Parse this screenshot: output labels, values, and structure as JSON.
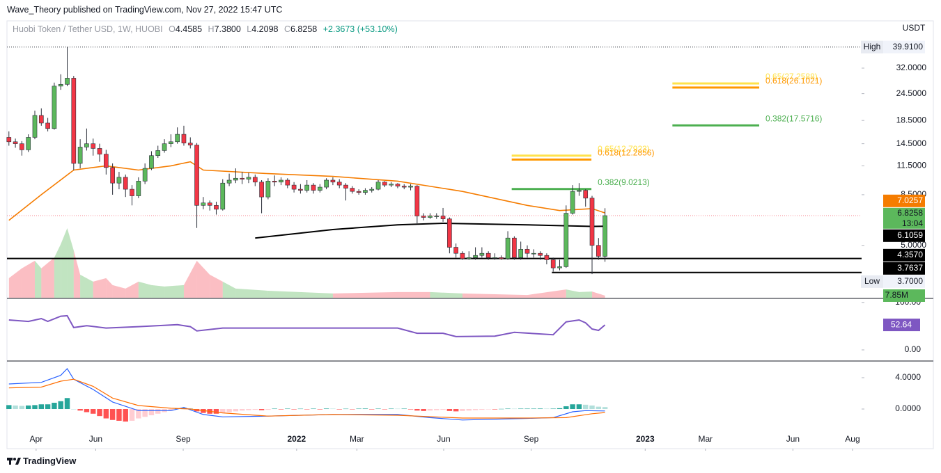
{
  "header": {
    "publisher": "Wave_Theory published on TradingView.com, Nov 27, 2022 15:47 UTC",
    "brand": "TradingView"
  },
  "chart_data": {
    "type": "candlestick",
    "title": "Huobi Token / Tether USD, 1W, HUOBI",
    "ohlc_letters": [
      "O",
      "H",
      "L",
      "C"
    ],
    "header_values": [
      "4.4585",
      "7.3800",
      "4.2098",
      "6.8258"
    ],
    "change": "+2.3673 (+53.10%)",
    "currency": "USDT",
    "up_color": "#5cb85c",
    "down_color": "#f23645",
    "outline_color": "#2a2e39",
    "last_line_color": "#f23645",
    "log_scale": true,
    "ylim": [
      2.89,
      52.5
    ],
    "yticks": [
      {
        "value": 32,
        "label": "32.0000"
      },
      {
        "value": 24.5,
        "label": "24.5000"
      },
      {
        "value": 18.5,
        "label": "18.5000"
      },
      {
        "value": 14.5,
        "label": "14.5000"
      },
      {
        "value": 11.5,
        "label": "11.5000"
      },
      {
        "value": 8.5,
        "label": "8.5000"
      },
      {
        "value": 5,
        "label": "5.0000"
      }
    ],
    "xlim": [
      -0.3,
      131.6
    ],
    "xticks": [
      {
        "value": 4.2,
        "label": "Apr"
      },
      {
        "value": 13.4,
        "label": "Jun"
      },
      {
        "value": 26.9,
        "label": "Sep"
      },
      {
        "value": 44.4,
        "label": "2022"
      },
      {
        "value": 53.7,
        "label": "Mar"
      },
      {
        "value": 67.1,
        "label": "Jun"
      },
      {
        "value": 80.6,
        "label": "Sep"
      },
      {
        "value": 98.2,
        "label": "2023"
      },
      {
        "value": 107.5,
        "label": "Mar"
      },
      {
        "value": 121,
        "label": "Jun"
      },
      {
        "value": 130.2,
        "label": "Aug"
      }
    ],
    "open": [
      15.5,
      14.8,
      14.5,
      13.6,
      15.5,
      19.5,
      18.0,
      17.0,
      26.5,
      27.0,
      28.8,
      11.8,
      14.0,
      14.5,
      13.8,
      13.0,
      11.3,
      9.6,
      10.2,
      9.0,
      8.4,
      9.8,
      11.2,
      12.8,
      13.5,
      14.5,
      14.8,
      16.0,
      14.6,
      14.3,
      7.6,
      7.8,
      7.6,
      7.3,
      9.6,
      9.9,
      10.1,
      10.0,
      10.2,
      9.7,
      8.3,
      9.8,
      9.7,
      9.9,
      9.4,
      9.0,
      8.9,
      9.4,
      8.9,
      9.2,
      9.9,
      9.7,
      9.4,
      9.1,
      8.8,
      8.7,
      8.9,
      9.0,
      9.7,
      9.4,
      9.5,
      9.3,
      9.2,
      9.3,
      6.8,
      6.7,
      6.8,
      6.8,
      6.6,
      4.9,
      4.6,
      4.35,
      4.4,
      4.5,
      4.6,
      4.4,
      4.4,
      4.35,
      5.4,
      4.4,
      4.8,
      4.6,
      4.6,
      4.5,
      4.3,
      3.95,
      4.0,
      7.0,
      8.8,
      8.9,
      8.2,
      5.0,
      4.4585
    ],
    "high": [
      16.5,
      15.3,
      14.9,
      16.0,
      20.5,
      21.0,
      19.0,
      27.5,
      30.0,
      39.91,
      29.5,
      15.2,
      17.0,
      15.3,
      14.5,
      13.6,
      11.8,
      10.8,
      10.5,
      9.4,
      10.2,
      11.8,
      13.4,
      14.2,
      15.2,
      16.0,
      17.2,
      17.5,
      15.5,
      14.6,
      8.3,
      8.0,
      7.9,
      10.0,
      10.6,
      11.2,
      10.8,
      10.7,
      10.5,
      9.9,
      10.1,
      10.4,
      10.2,
      10.1,
      9.7,
      9.5,
      9.9,
      9.6,
      9.5,
      10.1,
      10.2,
      10.0,
      9.6,
      9.3,
      9.0,
      9.1,
      9.2,
      9.9,
      9.8,
      9.7,
      9.6,
      9.5,
      9.5,
      9.4,
      7.0,
      7.0,
      7.0,
      7.4,
      6.7,
      5.1,
      4.7,
      4.7,
      4.9,
      4.9,
      4.7,
      4.6,
      4.5,
      5.8,
      5.5,
      5.2,
      5.0,
      4.8,
      4.7,
      4.6,
      4.4,
      4.3,
      7.6,
      9.4,
      9.6,
      9.0,
      8.4,
      5.4,
      7.38
    ],
    "low": [
      14.2,
      13.9,
      12.8,
      13.3,
      15.2,
      17.5,
      16.5,
      16.8,
      25.5,
      26.5,
      11.0,
      11.2,
      13.5,
      12.8,
      12.0,
      10.5,
      8.5,
      9.0,
      8.3,
      7.6,
      8.2,
      9.5,
      11.0,
      12.5,
      13.2,
      14.0,
      14.5,
      14.2,
      13.8,
      6.0,
      7.3,
      7.2,
      6.9,
      7.2,
      9.3,
      9.6,
      9.5,
      9.6,
      9.3,
      7.0,
      8.1,
      9.3,
      9.4,
      9.1,
      8.7,
      8.6,
      8.7,
      8.6,
      8.7,
      9.0,
      9.4,
      9.1,
      8.0,
      8.6,
      8.5,
      8.5,
      8.7,
      8.9,
      9.2,
      9.2,
      9.1,
      9.0,
      8.9,
      6.3,
      6.5,
      6.6,
      6.6,
      6.4,
      4.6,
      4.4,
      4.3,
      4.3,
      4.3,
      4.4,
      4.3,
      4.3,
      4.3,
      4.3,
      4.3,
      4.3,
      4.4,
      4.4,
      4.3,
      4.1,
      3.8,
      3.85,
      3.95,
      6.9,
      8.4,
      7.5,
      3.7,
      4.3,
      4.2098
    ],
    "close": [
      14.8,
      14.5,
      13.6,
      15.5,
      19.5,
      18.0,
      17.0,
      26.5,
      27.0,
      28.8,
      11.8,
      14.0,
      14.5,
      13.8,
      13.0,
      11.3,
      9.6,
      10.2,
      9.0,
      8.4,
      9.8,
      11.2,
      12.8,
      13.5,
      14.5,
      14.8,
      16.0,
      14.6,
      14.3,
      7.6,
      7.8,
      7.6,
      7.3,
      9.6,
      9.9,
      10.1,
      10.0,
      10.2,
      9.7,
      8.3,
      9.8,
      9.7,
      9.9,
      9.4,
      9.0,
      8.9,
      9.4,
      8.9,
      9.2,
      9.9,
      9.7,
      9.4,
      9.1,
      8.8,
      8.7,
      8.9,
      9.0,
      9.7,
      9.4,
      9.5,
      9.3,
      9.2,
      9.3,
      6.8,
      6.7,
      6.8,
      6.8,
      6.6,
      4.9,
      4.6,
      4.35,
      4.4,
      4.5,
      4.6,
      4.4,
      4.4,
      4.35,
      5.4,
      4.4,
      4.8,
      4.6,
      4.6,
      4.5,
      4.3,
      3.95,
      4.0,
      7.0,
      8.8,
      8.9,
      8.2,
      5.0,
      4.4585,
      6.8258
    ],
    "moving_averages": [
      {
        "color": "#f57c00",
        "x": [
          0,
          5,
          10,
          15,
          20,
          25,
          28,
          30,
          40,
          50,
          60,
          70,
          80,
          85,
          90,
          92
        ],
        "values": [
          6.5,
          8.5,
          11.0,
          11.5,
          11.0,
          11.5,
          12.0,
          11.0,
          10.6,
          10.3,
          9.8,
          8.8,
          7.6,
          7.2,
          7.35,
          7.0257
        ]
      },
      {
        "color": "#000000",
        "x": [
          38,
          50,
          60,
          67,
          80,
          90,
          92
        ],
        "values": [
          5.4,
          5.9,
          6.2,
          6.3,
          6.2,
          6.1,
          6.1059
        ]
      }
    ],
    "fib_levels": [
      {
        "label": "0.65(12.7923)",
        "value": 12.7923,
        "color": "#ffe24a",
        "x": [
          77.6,
          89.9
        ]
      },
      {
        "label": "0.618(12.2856)",
        "value": 12.2856,
        "color": "#ff9800",
        "x": [
          77.6,
          89.9
        ]
      },
      {
        "label": "0.382(9.0213)",
        "value": 9.0213,
        "color": "#4caf50",
        "x": [
          77.6,
          89.9
        ]
      },
      {
        "label": "0.65(27.2588)",
        "value": 27.2588,
        "color": "#ffe24a",
        "x": [
          102.4,
          115.8
        ]
      },
      {
        "label": "0.618(26.1021)",
        "value": 26.1021,
        "color": "#ff9800",
        "x": [
          102.4,
          115.8
        ]
      },
      {
        "label": "0.382(17.5716)",
        "value": 17.5716,
        "color": "#4caf50",
        "x": [
          102.4,
          115.8
        ]
      }
    ],
    "levels": [
      {
        "value": 4.357,
        "color": "#000000",
        "x": [
          -0.3,
          131.6
        ]
      },
      {
        "value": 3.7637,
        "color": "#000000",
        "x": [
          83.8,
          131.6
        ]
      }
    ],
    "extremes": {
      "high": {
        "name": "High",
        "value": 39.91,
        "label": "39.9100"
      },
      "low": {
        "name": "Low",
        "value": 3.7,
        "label": "3.7000"
      }
    },
    "price_tags": [
      {
        "value": 7.0257,
        "label": "7.0257",
        "color": "#f57c00",
        "text_color": "#ffffff"
      },
      {
        "value": 6.8258,
        "label": "6.8258",
        "countdown": "13:04",
        "color": "#5cb85c",
        "text_color": "#131722"
      },
      {
        "value": 6.1059,
        "label": "6.1059",
        "color": "#000000",
        "text_color": "#ffffff"
      },
      {
        "value": 4.357,
        "label": "4.3570",
        "color": "#000000",
        "text_color": "#ffffff"
      },
      {
        "value": 3.7637,
        "label": "3.7637",
        "color": "#000000",
        "text_color": "#ffffff"
      }
    ],
    "volume": {
      "ylim": [
        0,
        1035
      ],
      "up_color": "rgba(92,184,92,0.38)",
      "down_color": "rgba(242,54,69,0.32)",
      "tag_color": "#5cb85c",
      "x": [
        0,
        2,
        4,
        5,
        7,
        8,
        9,
        10,
        11,
        13,
        15,
        16,
        18,
        20,
        22,
        24,
        27,
        29,
        31,
        33,
        35,
        40,
        50,
        60,
        65,
        70,
        80,
        86,
        88,
        90,
        92
      ],
      "values": [
        73,
        110,
        138,
        110,
        150,
        200,
        260,
        177,
        86,
        60,
        73,
        47,
        34,
        60,
        47,
        42,
        47,
        138,
        86,
        60,
        34,
        26,
        16,
        21,
        21,
        16,
        10,
        31,
        21,
        23,
        7.85
      ],
      "last_value_label": "7.85M"
    },
    "rsi": {
      "color": "#7e57c2",
      "ylim": [
        -22,
        107
      ],
      "yticks": [
        {
          "value": 100,
          "label": "100.00"
        },
        {
          "value": 0,
          "label": "0.00"
        }
      ],
      "x": [
        0,
        3,
        5,
        6,
        8,
        9,
        10,
        12,
        15,
        20,
        26,
        28,
        29,
        33,
        40,
        50,
        60,
        63,
        67,
        69,
        75,
        78,
        84,
        86,
        88,
        89,
        90,
        91,
        92
      ],
      "values": [
        63,
        60,
        66,
        60,
        71,
        72,
        47,
        51,
        46,
        49,
        53,
        49,
        40,
        46,
        46,
        46,
        46,
        35,
        35,
        28,
        29,
        37,
        32,
        59,
        63,
        57,
        44,
        41,
        52.64
      ]
    },
    "macd": {
      "ylim": [
        -2.84,
        6.04
      ],
      "yticks": [
        {
          "value": 4,
          "label": "4.0000"
        },
        {
          "value": 0,
          "label": "0.0000"
        }
      ],
      "macd_line": {
        "color": "#2962ff",
        "x": [
          0,
          5,
          8,
          9,
          10,
          13,
          16,
          20,
          25,
          27,
          30,
          33,
          40,
          50,
          60,
          65,
          70,
          80,
          84,
          87,
          89,
          92
        ],
        "values": [
          3.2,
          3.4,
          4.3,
          5.15,
          3.8,
          2.5,
          0.9,
          -0.2,
          -0.2,
          0.2,
          -0.7,
          -1.0,
          -0.9,
          -0.7,
          -0.7,
          -1.1,
          -1.4,
          -1.2,
          -1.1,
          -0.35,
          -0.2,
          -0.25
        ]
      },
      "signal_line": {
        "color": "#ff6d00",
        "x": [
          0,
          5,
          8,
          10,
          13,
          16,
          20,
          25,
          28,
          33,
          40,
          50,
          60,
          70,
          80,
          86,
          90,
          92
        ],
        "values": [
          2.7,
          2.8,
          3.55,
          3.8,
          2.9,
          1.4,
          0.45,
          0.1,
          0,
          -0.5,
          -0.9,
          -0.7,
          -0.8,
          -1.15,
          -1.15,
          -1.1,
          -0.6,
          -0.45
        ]
      },
      "hist_colors": {
        "up_rising": "#26a69a",
        "up_falling": "#b2dfdb",
        "down_falling": "#ff5252",
        "down_rising": "#ffcdd2"
      },
      "histogram": [
        0.5,
        0.45,
        0.4,
        0.45,
        0.5,
        0.6,
        0.6,
        0.8,
        1.0,
        1.4,
        0.0,
        -0.2,
        -0.4,
        -0.6,
        -0.9,
        -1.2,
        -1.4,
        -1.5,
        -1.6,
        -1.5,
        -1.2,
        -1.0,
        -0.8,
        -0.6,
        -0.4,
        -0.2,
        0.1,
        0.15,
        0.1,
        -0.3,
        -0.5,
        -0.6,
        -0.6,
        -0.5,
        -0.4,
        -0.3,
        -0.2,
        -0.15,
        -0.1,
        -0.15,
        -0.1,
        0.05,
        -0.05,
        0.05,
        -0.05,
        0.04,
        -0.04,
        0.05,
        -0.05,
        0.06,
        0.05,
        -0.05,
        0.04,
        -0.04,
        0.05,
        0.06,
        -0.05,
        0.05,
        -0.04,
        0.05,
        0.04,
        0.05,
        -0.05,
        -0.2,
        -0.25,
        -0.2,
        -0.15,
        -0.1,
        -0.25,
        -0.3,
        -0.25,
        -0.2,
        -0.15,
        -0.1,
        -0.05,
        -0.05,
        0.02,
        0.05,
        0.04,
        0.05,
        0.05,
        0.05,
        0.06,
        0.05,
        0.05,
        0.1,
        0.35,
        0.6,
        0.6,
        0.55,
        0.45,
        0.3,
        0.25
      ]
    }
  }
}
